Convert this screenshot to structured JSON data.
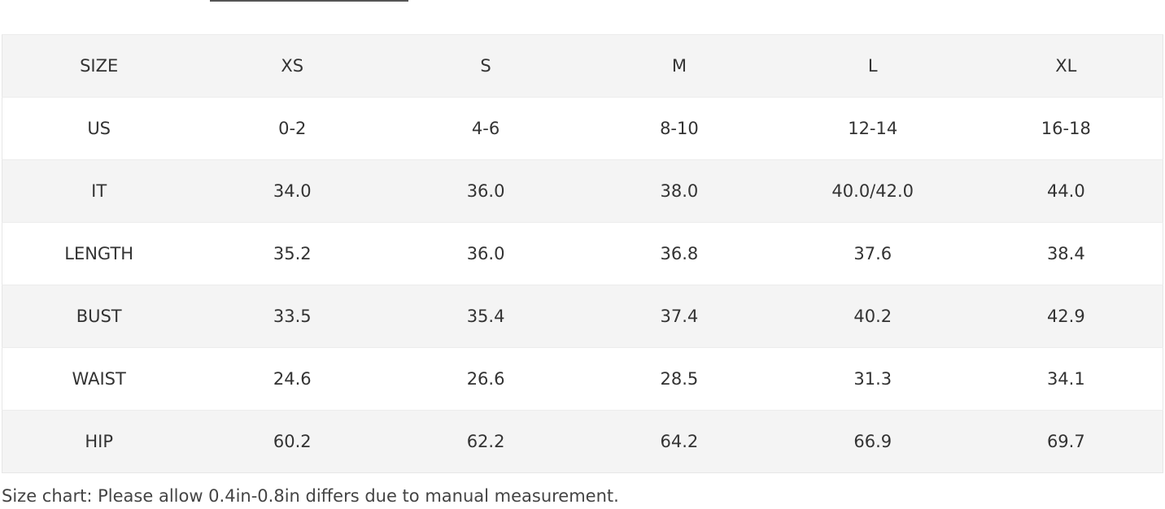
{
  "table": {
    "header": [
      "SIZE",
      "XS",
      "S",
      "M",
      "L",
      "XL"
    ],
    "rows": [
      [
        "US",
        "0-2",
        "4-6",
        "8-10",
        "12-14",
        "16-18"
      ],
      [
        "IT",
        "34.0",
        "36.0",
        "38.0",
        "40.0/42.0",
        "44.0"
      ],
      [
        "LENGTH",
        "35.2",
        "36.0",
        "36.8",
        "37.6",
        "38.4"
      ],
      [
        "BUST",
        "33.5",
        "35.4",
        "37.4",
        "40.2",
        "42.9"
      ],
      [
        "WAIST",
        "24.6",
        "26.6",
        "28.5",
        "31.3",
        "34.1"
      ],
      [
        "HIP",
        "60.2",
        "62.2",
        "64.2",
        "66.9",
        "69.7"
      ]
    ]
  },
  "note": "Size chart: Please allow 0.4in-0.8in differs due to manual measurement."
}
